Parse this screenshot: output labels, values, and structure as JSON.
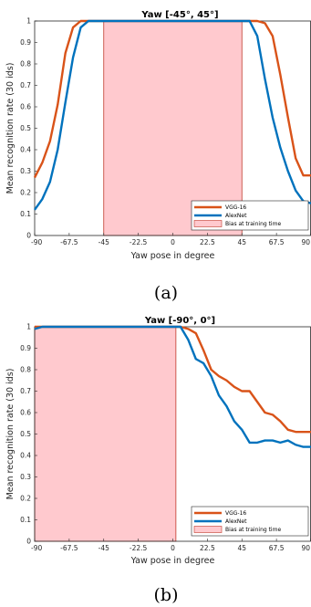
{
  "chart_data": [
    {
      "type": "line",
      "title": "Yaw [-45°, 45°]",
      "xlabel": "Yaw pose in degree",
      "ylabel": "Mean recognition rate (30 ids)",
      "caption": "(a)",
      "xlim": [
        -90,
        90
      ],
      "ylim": [
        0,
        1
      ],
      "xticks": [
        "-90",
        "-67.5",
        "-45",
        "-22.5",
        "0",
        "22.5",
        "45",
        "67.5",
        "90"
      ],
      "yticks": [
        "0",
        "0.1",
        "0.2",
        "0.3",
        "0.4",
        "0.5",
        "0.6",
        "0.7",
        "0.8",
        "0.9",
        "1"
      ],
      "grid": false,
      "legend_position": "bottom-right",
      "bias_region": [
        -45,
        45
      ],
      "bias_label": "Bias at training time",
      "series": [
        {
          "name": "VGG-16",
          "color": "#d95319",
          "x": [
            -90,
            -85,
            -80,
            -75,
            -70,
            -65,
            -60,
            -55,
            -50,
            -45,
            45,
            50,
            55,
            60,
            65,
            70,
            75,
            80,
            85,
            90
          ],
          "y": [
            0.27,
            0.34,
            0.44,
            0.61,
            0.85,
            0.97,
            1.0,
            1.0,
            1.0,
            1.0,
            1.0,
            1.0,
            1.0,
            0.99,
            0.93,
            0.75,
            0.55,
            0.36,
            0.28,
            0.28
          ]
        },
        {
          "name": "AlexNet",
          "color": "#0072bd",
          "x": [
            -90,
            -85,
            -80,
            -75,
            -70,
            -65,
            -60,
            -55,
            -50,
            -45,
            45,
            50,
            55,
            60,
            65,
            70,
            75,
            80,
            85,
            90
          ],
          "y": [
            0.12,
            0.17,
            0.25,
            0.4,
            0.62,
            0.83,
            0.97,
            1.0,
            1.0,
            1.0,
            1.0,
            1.0,
            0.93,
            0.73,
            0.55,
            0.41,
            0.3,
            0.21,
            0.16,
            0.15
          ]
        }
      ]
    },
    {
      "type": "line",
      "title": "Yaw [-90°, 0°]",
      "xlabel": "Yaw pose in degree",
      "ylabel": "Mean recognition rate (30 ids)",
      "caption": "(b)",
      "xlim": [
        -90,
        90
      ],
      "ylim": [
        0,
        1
      ],
      "xticks": [
        "-90",
        "-67.5",
        "-45",
        "-22.5",
        "0",
        "22.5",
        "45",
        "67.5",
        "90"
      ],
      "yticks": [
        "0",
        "0.1",
        "0.2",
        "0.3",
        "0.4",
        "0.5",
        "0.6",
        "0.7",
        "0.8",
        "0.9",
        "1"
      ],
      "grid": false,
      "legend_position": "bottom-right",
      "bias_region": [
        -90,
        2
      ],
      "bias_label": "Bias at training time",
      "series": [
        {
          "name": "VGG-16",
          "color": "#d95319",
          "x": [
            -90,
            -75,
            -60,
            -45,
            -30,
            -15,
            0,
            5,
            10,
            15,
            20,
            25,
            30,
            35,
            40,
            45,
            50,
            55,
            60,
            65,
            70,
            75,
            80,
            85,
            90
          ],
          "y": [
            1.0,
            1.0,
            1.0,
            1.0,
            1.0,
            1.0,
            1.0,
            1.0,
            0.99,
            0.97,
            0.89,
            0.8,
            0.77,
            0.75,
            0.72,
            0.7,
            0.7,
            0.65,
            0.6,
            0.59,
            0.56,
            0.52,
            0.51,
            0.51,
            0.51
          ]
        },
        {
          "name": "AlexNet",
          "color": "#0072bd",
          "x": [
            -90,
            -85,
            -75,
            -60,
            -45,
            -30,
            -15,
            0,
            5,
            10,
            15,
            20,
            25,
            30,
            35,
            40,
            45,
            50,
            55,
            60,
            65,
            70,
            75,
            80,
            85,
            90
          ],
          "y": [
            0.99,
            1.0,
            1.0,
            1.0,
            1.0,
            1.0,
            1.0,
            1.0,
            1.0,
            0.94,
            0.85,
            0.83,
            0.77,
            0.68,
            0.63,
            0.56,
            0.52,
            0.46,
            0.46,
            0.47,
            0.47,
            0.46,
            0.47,
            0.45,
            0.44,
            0.44
          ]
        }
      ]
    }
  ]
}
